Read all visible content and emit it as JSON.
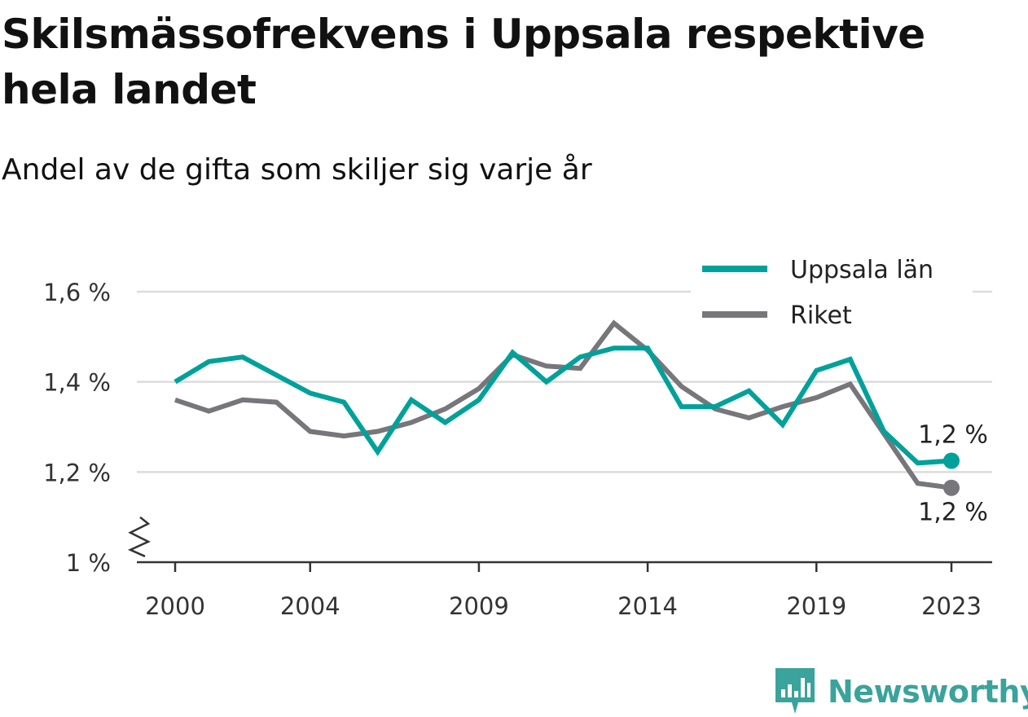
{
  "title": "Skilsmässofrekvens i Uppsala respektive hela landet",
  "subtitle": "Andel av de gifta som skiljer sig varje år",
  "brand": {
    "name": "Newsworthy",
    "icon": "bar-chart-bubble-icon",
    "color": "#3aa39b"
  },
  "chart_data": {
    "type": "line",
    "x": [
      2000,
      2001,
      2002,
      2003,
      2004,
      2005,
      2006,
      2007,
      2008,
      2009,
      2010,
      2011,
      2012,
      2013,
      2014,
      2015,
      2016,
      2017,
      2018,
      2019,
      2020,
      2021,
      2022,
      2023
    ],
    "x_ticks": [
      "2000",
      "2004",
      "2009",
      "2014",
      "2019",
      "2023"
    ],
    "y_ticks": [
      "1 %",
      "1,2 %",
      "1,4 %",
      "1,6 %"
    ],
    "ylim": [
      1.0,
      1.6
    ],
    "y_axis_break": true,
    "grid": true,
    "legend_position": "top-right",
    "series": [
      {
        "name": "Uppsala län",
        "color": "#00a19a",
        "values": [
          1.4,
          1.445,
          1.455,
          1.415,
          1.375,
          1.355,
          1.245,
          1.36,
          1.31,
          1.36,
          1.465,
          1.4,
          1.455,
          1.475,
          1.475,
          1.345,
          1.345,
          1.38,
          1.305,
          1.425,
          1.45,
          1.29,
          1.22,
          1.225
        ],
        "end_label": "1,2 %",
        "end_label_position": "above"
      },
      {
        "name": "Riket",
        "color": "#77767b",
        "values": [
          1.36,
          1.335,
          1.36,
          1.355,
          1.29,
          1.28,
          1.29,
          1.31,
          1.34,
          1.385,
          1.46,
          1.435,
          1.43,
          1.53,
          1.47,
          1.39,
          1.34,
          1.32,
          1.345,
          1.365,
          1.395,
          1.285,
          1.175,
          1.165
        ],
        "end_label": "1,2 %",
        "end_label_position": "below"
      }
    ]
  }
}
